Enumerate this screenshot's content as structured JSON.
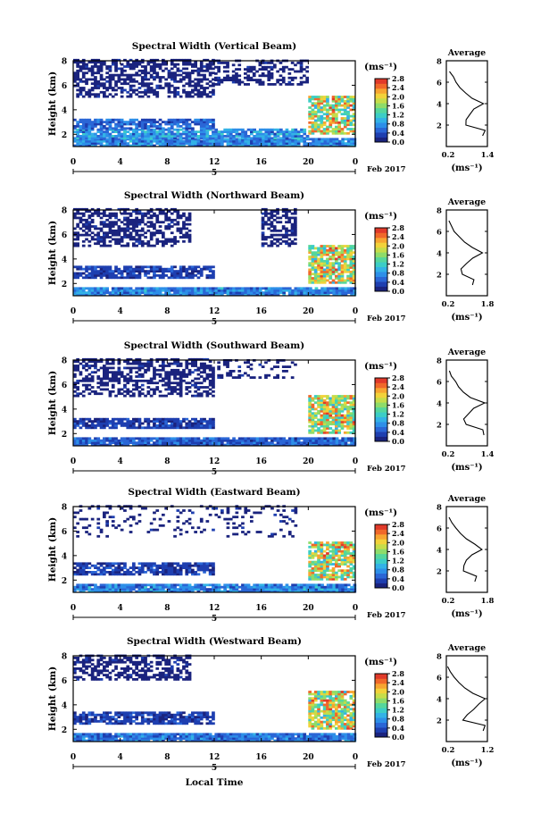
{
  "figure": {
    "xlabel": "Local Time",
    "date_label": "Feb 2017",
    "day_marker": "5",
    "cbar_unit": "(ms⁻¹)",
    "avg_title": "Average",
    "avg_xlabel": "(ms⁻¹)",
    "ylabel": "Height (km)"
  },
  "colormap": [
    "#1a237e",
    "#1e3fb0",
    "#2a66d6",
    "#2d8fe8",
    "#33b2e6",
    "#3ccdc6",
    "#55d69c",
    "#8edc6a",
    "#c6dd4a",
    "#f2d23a",
    "#f7a531",
    "#f0682a",
    "#e03a2a"
  ],
  "chart_data": [
    {
      "type": "heatmap",
      "title": "Spectral Width (Vertical Beam)",
      "xlabel": "Local Time",
      "ylabel": "Height (km)",
      "xticks": [
        "0",
        "4",
        "8",
        "12",
        "16",
        "20",
        "0"
      ],
      "xlim": [
        0,
        24
      ],
      "ylim": [
        1,
        8
      ],
      "yticks": [
        "2",
        "4",
        "6",
        "8"
      ],
      "colorbar": {
        "ticks": [
          "0.0",
          "0.4",
          "0.8",
          "1.2",
          "1.6",
          "2.0",
          "2.4",
          "2.8"
        ],
        "range": [
          0,
          2.8
        ]
      },
      "layers": [
        {
          "x": [
            0,
            24
          ],
          "y": [
            1.0,
            1.6
          ],
          "value": 0.7,
          "coverage": 0.95
        },
        {
          "x": [
            0,
            20
          ],
          "y": [
            1.6,
            2.4
          ],
          "value": 0.8,
          "coverage": 0.85
        },
        {
          "x": [
            0,
            12
          ],
          "y": [
            2.4,
            3.2
          ],
          "value": 0.5,
          "coverage": 0.8
        },
        {
          "x": [
            0,
            12
          ],
          "y": [
            5.0,
            8.0
          ],
          "value": 0.1,
          "coverage": 0.55
        },
        {
          "x": [
            12,
            20
          ],
          "y": [
            6.0,
            8.0
          ],
          "value": 0.1,
          "coverage": 0.45
        },
        {
          "x": [
            20,
            24
          ],
          "y": [
            2.0,
            5.0
          ],
          "value": 1.8,
          "coverage": 0.8
        }
      ],
      "average": {
        "xlim": [
          0.2,
          1.4
        ],
        "xticks": [
          "0.2",
          "1.4"
        ],
        "ylim": [
          0,
          8
        ],
        "yticks": [
          "2",
          "4",
          "6",
          "8"
        ],
        "profile": [
          [
            1.0,
            1.25
          ],
          [
            1.5,
            1.35
          ],
          [
            2.0,
            0.75
          ],
          [
            2.5,
            0.8
          ],
          [
            3.0,
            0.9
          ],
          [
            3.5,
            1.0
          ],
          [
            4.0,
            1.3
          ],
          [
            4.5,
            0.95
          ],
          [
            5.0,
            0.75
          ],
          [
            5.5,
            0.6
          ],
          [
            6.0,
            0.5
          ],
          [
            6.5,
            0.4
          ],
          [
            7.0,
            0.3
          ]
        ]
      }
    },
    {
      "type": "heatmap",
      "title": "Spectral Width (Northward Beam)",
      "xlabel": "Local Time",
      "ylabel": "Height (km)",
      "xticks": [
        "0",
        "4",
        "8",
        "12",
        "16",
        "20",
        "0"
      ],
      "xlim": [
        0,
        24
      ],
      "ylim": [
        1,
        8
      ],
      "yticks": [
        "2",
        "4",
        "6",
        "8"
      ],
      "colorbar": {
        "ticks": [
          "0.0",
          "0.4",
          "0.8",
          "1.2",
          "1.6",
          "2.0",
          "2.4",
          "2.8"
        ],
        "range": [
          0,
          2.8
        ]
      },
      "layers": [
        {
          "x": [
            0,
            24
          ],
          "y": [
            1.0,
            1.6
          ],
          "value": 0.7,
          "coverage": 0.95
        },
        {
          "x": [
            0,
            12
          ],
          "y": [
            2.4,
            3.4
          ],
          "value": 0.3,
          "coverage": 0.8
        },
        {
          "x": [
            0,
            10
          ],
          "y": [
            5.0,
            8.0
          ],
          "value": 0.1,
          "coverage": 0.55
        },
        {
          "x": [
            16,
            19
          ],
          "y": [
            5.0,
            8.0
          ],
          "value": 0.1,
          "coverage": 0.5
        },
        {
          "x": [
            20,
            24
          ],
          "y": [
            2.0,
            5.0
          ],
          "value": 1.8,
          "coverage": 0.8
        }
      ],
      "average": {
        "xlim": [
          0.2,
          1.8
        ],
        "xticks": [
          "0.2",
          "1.8"
        ],
        "ylim": [
          0,
          8
        ],
        "yticks": [
          "2",
          "4",
          "6",
          "8"
        ],
        "profile": [
          [
            1.0,
            1.2
          ],
          [
            1.5,
            1.3
          ],
          [
            2.0,
            0.8
          ],
          [
            2.5,
            0.8
          ],
          [
            3.0,
            1.0
          ],
          [
            3.5,
            1.2
          ],
          [
            4.0,
            1.6
          ],
          [
            4.5,
            1.2
          ],
          [
            5.0,
            0.9
          ],
          [
            5.5,
            0.7
          ],
          [
            6.0,
            0.5
          ],
          [
            6.5,
            0.4
          ],
          [
            7.0,
            0.3
          ]
        ]
      }
    },
    {
      "type": "heatmap",
      "title": "Spectral Width (Southward Beam)",
      "xlabel": "Local Time",
      "ylabel": "Height (km)",
      "xticks": [
        "0",
        "4",
        "8",
        "12",
        "16",
        "20",
        "0"
      ],
      "xlim": [
        0,
        24
      ],
      "ylim": [
        1,
        8
      ],
      "yticks": [
        "2",
        "4",
        "6",
        "8"
      ],
      "colorbar": {
        "ticks": [
          "0.0",
          "0.4",
          "0.8",
          "1.2",
          "1.6",
          "2.0",
          "2.4",
          "2.8"
        ],
        "range": [
          0,
          2.8
        ]
      },
      "layers": [
        {
          "x": [
            0,
            24
          ],
          "y": [
            1.0,
            1.6
          ],
          "value": 0.5,
          "coverage": 0.95
        },
        {
          "x": [
            0,
            12
          ],
          "y": [
            2.4,
            3.2
          ],
          "value": 0.3,
          "coverage": 0.8
        },
        {
          "x": [
            0,
            12
          ],
          "y": [
            5.0,
            8.0
          ],
          "value": 0.1,
          "coverage": 0.55
        },
        {
          "x": [
            12,
            19
          ],
          "y": [
            6.5,
            8.0
          ],
          "value": 0.1,
          "coverage": 0.25
        },
        {
          "x": [
            20,
            24
          ],
          "y": [
            2.0,
            5.0
          ],
          "value": 1.8,
          "coverage": 0.8
        }
      ],
      "average": {
        "xlim": [
          0.2,
          1.4
        ],
        "xticks": [
          "0.2",
          "1.4"
        ],
        "ylim": [
          0,
          8
        ],
        "yticks": [
          "2",
          "4",
          "6",
          "8"
        ],
        "profile": [
          [
            1.0,
            1.3
          ],
          [
            1.5,
            1.25
          ],
          [
            2.0,
            0.8
          ],
          [
            2.5,
            0.7
          ],
          [
            3.0,
            0.85
          ],
          [
            3.5,
            1.0
          ],
          [
            4.0,
            1.3
          ],
          [
            4.5,
            0.9
          ],
          [
            5.0,
            0.7
          ],
          [
            5.5,
            0.55
          ],
          [
            6.0,
            0.45
          ],
          [
            6.5,
            0.35
          ],
          [
            7.0,
            0.3
          ]
        ]
      }
    },
    {
      "type": "heatmap",
      "title": "Spectral Width (Eastward Beam)",
      "xlabel": "Local Time",
      "ylabel": "Height (km)",
      "xticks": [
        "0",
        "4",
        "8",
        "12",
        "16",
        "20",
        "0"
      ],
      "xlim": [
        0,
        24
      ],
      "ylim": [
        1,
        8
      ],
      "yticks": [
        "2",
        "4",
        "6",
        "8"
      ],
      "colorbar": {
        "ticks": [
          "0.0",
          "0.4",
          "0.8",
          "1.2",
          "1.6",
          "2.0",
          "2.4",
          "2.8"
        ],
        "range": [
          0,
          2.8
        ]
      },
      "layers": [
        {
          "x": [
            0,
            24
          ],
          "y": [
            1.0,
            1.6
          ],
          "value": 0.7,
          "coverage": 0.95
        },
        {
          "x": [
            0,
            12
          ],
          "y": [
            2.4,
            3.4
          ],
          "value": 0.3,
          "coverage": 0.75
        },
        {
          "x": [
            0,
            19
          ],
          "y": [
            5.5,
            8.0
          ],
          "value": 0.1,
          "coverage": 0.18
        },
        {
          "x": [
            20,
            24
          ],
          "y": [
            2.0,
            5.0
          ],
          "value": 1.8,
          "coverage": 0.8
        }
      ],
      "average": {
        "xlim": [
          0.2,
          1.8
        ],
        "xticks": [
          "0.2",
          "1.8"
        ],
        "ylim": [
          0,
          8
        ],
        "yticks": [
          "2",
          "4",
          "6",
          "8"
        ],
        "profile": [
          [
            1.0,
            1.3
          ],
          [
            1.5,
            1.35
          ],
          [
            2.0,
            0.85
          ],
          [
            2.5,
            0.9
          ],
          [
            3.0,
            1.0
          ],
          [
            3.5,
            1.2
          ],
          [
            4.0,
            1.6
          ],
          [
            4.5,
            1.3
          ],
          [
            5.0,
            0.95
          ],
          [
            5.5,
            0.75
          ],
          [
            6.0,
            0.55
          ],
          [
            6.5,
            0.4
          ],
          [
            7.0,
            0.3
          ]
        ]
      }
    },
    {
      "type": "heatmap",
      "title": "Spectral Width (Westward Beam)",
      "xlabel": "Local Time",
      "ylabel": "Height (km)",
      "xticks": [
        "0",
        "4",
        "8",
        "12",
        "16",
        "20",
        "0"
      ],
      "xlim": [
        0,
        24
      ],
      "ylim": [
        1,
        8
      ],
      "yticks": [
        "2",
        "4",
        "6",
        "8"
      ],
      "colorbar": {
        "ticks": [
          "0.0",
          "0.4",
          "0.8",
          "1.2",
          "1.6",
          "2.0",
          "2.4",
          "2.8"
        ],
        "range": [
          0,
          2.8
        ]
      },
      "layers": [
        {
          "x": [
            0,
            24
          ],
          "y": [
            1.0,
            1.6
          ],
          "value": 0.6,
          "coverage": 0.95
        },
        {
          "x": [
            0,
            12
          ],
          "y": [
            2.4,
            3.4
          ],
          "value": 0.3,
          "coverage": 0.75
        },
        {
          "x": [
            0,
            10
          ],
          "y": [
            6.0,
            8.0
          ],
          "value": 0.1,
          "coverage": 0.5
        },
        {
          "x": [
            20,
            24
          ],
          "y": [
            2.0,
            5.0
          ],
          "value": 1.8,
          "coverage": 0.8
        }
      ],
      "average": {
        "xlim": [
          0.2,
          1.2
        ],
        "xticks": [
          "0.2",
          "1.2"
        ],
        "ylim": [
          0,
          8
        ],
        "yticks": [
          "2",
          "4",
          "6",
          "8"
        ],
        "profile": [
          [
            1.0,
            1.1
          ],
          [
            1.5,
            1.15
          ],
          [
            2.0,
            0.6
          ],
          [
            2.5,
            0.7
          ],
          [
            3.0,
            0.85
          ],
          [
            3.5,
            1.0
          ],
          [
            4.0,
            1.15
          ],
          [
            4.5,
            0.85
          ],
          [
            5.0,
            0.65
          ],
          [
            5.5,
            0.5
          ],
          [
            6.0,
            0.4
          ],
          [
            6.5,
            0.3
          ],
          [
            7.0,
            0.25
          ]
        ]
      }
    }
  ]
}
